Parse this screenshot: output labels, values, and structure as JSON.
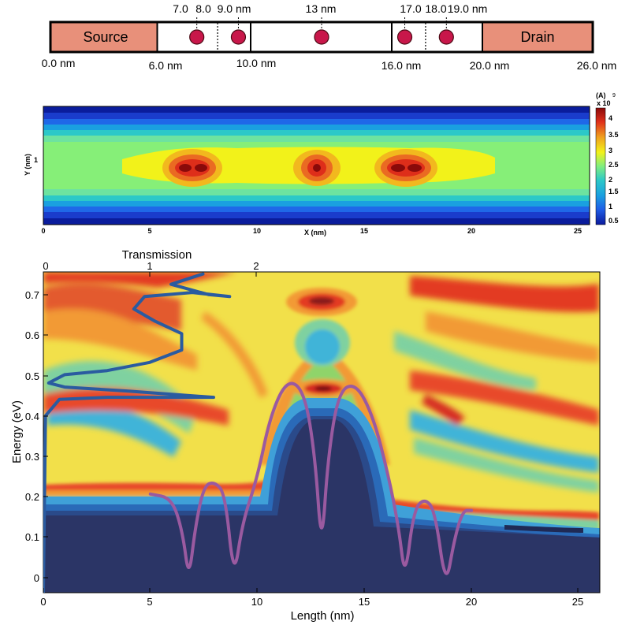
{
  "device": {
    "source_label": "Source",
    "drain_label": "Drain",
    "dopant_positions": [
      "7.0",
      "8.0",
      "9.0 nm",
      "13 nm",
      "17.0",
      "18.0",
      "19.0 nm"
    ],
    "bottom_positions": [
      "0.0 nm",
      "6.0 nm",
      "10.0 nm",
      "16.0 nm",
      "20.0 nm",
      "26.0 nm"
    ],
    "dopant_x_nm": [
      7,
      9,
      13,
      17,
      19
    ],
    "divider_x_nm": [
      8,
      18
    ]
  },
  "chart_data": [
    {
      "type": "heatmap",
      "title": "",
      "xlabel": "X (nm)",
      "ylabel": "Y (nm)",
      "xlim": [
        0,
        25.5
      ],
      "x_ticks": [
        "0",
        "5",
        "10",
        "15",
        "20",
        "25"
      ],
      "y_ticks": [
        "1"
      ],
      "colorbar": {
        "unit": "(A)",
        "multiplier": "x 10",
        "exponent": "9",
        "ticks": [
          "4",
          "3.5",
          "3",
          "2.5",
          "2",
          "1.5",
          "1",
          "0.5"
        ],
        "range": [
          0.3,
          4.3
        ]
      },
      "peaks": [
        {
          "x": 7,
          "value": 4.3
        },
        {
          "x": 13,
          "value": 4.2
        },
        {
          "x": 17,
          "value": 4.3
        }
      ]
    },
    {
      "type": "heatmap",
      "title": "",
      "xlabel": "Length (nm)",
      "ylabel": "Energy (eV)",
      "top_axis_label": "Transmission",
      "xlim": [
        0,
        26
      ],
      "ylim": [
        -0.03,
        0.75
      ],
      "x_ticks": [
        "0",
        "5",
        "10",
        "15",
        "20",
        "25"
      ],
      "y_ticks": [
        "0",
        "0.1",
        "0.2",
        "0.3",
        "0.4",
        "0.5",
        "0.6",
        "0.7"
      ],
      "top_ticks": [
        "0",
        "1",
        "2"
      ],
      "series": [
        {
          "color": "#2a5ba0",
          "points": [
            [
              0,
              -0.03
            ],
            [
              0.02,
              0.4
            ],
            [
              0.15,
              0.44
            ],
            [
              0.6,
              0.445
            ],
            [
              1.6,
              0.445
            ],
            [
              0.8,
              0.46
            ],
            [
              0.2,
              0.47
            ],
            [
              0.05,
              0.48
            ],
            [
              0.2,
              0.5
            ],
            [
              0.6,
              0.51
            ],
            [
              1.0,
              0.53
            ],
            [
              1.3,
              0.56
            ],
            [
              1.3,
              0.6
            ],
            [
              1.05,
              0.63
            ],
            [
              0.85,
              0.66
            ],
            [
              0.95,
              0.69
            ],
            [
              1.4,
              0.7
            ],
            [
              1.75,
              0.69
            ],
            [
              1.55,
              0.695
            ],
            [
              1.2,
              0.72
            ],
            [
              1.5,
              0.745
            ]
          ]
        },
        {
          "color": "#9a5aa0",
          "points": [
            [
              5.0,
              0.21
            ],
            [
              6.0,
              0.2
            ],
            [
              6.5,
              0.12
            ],
            [
              6.8,
              0.0
            ],
            [
              7.1,
              0.13
            ],
            [
              7.5,
              0.23
            ],
            [
              8.0,
              0.24
            ],
            [
              8.5,
              0.21
            ],
            [
              8.9,
              0.0
            ],
            [
              9.3,
              0.14
            ],
            [
              10.0,
              0.25
            ],
            [
              10.6,
              0.4
            ],
            [
              11.4,
              0.49
            ],
            [
              12.2,
              0.46
            ],
            [
              12.7,
              0.3
            ],
            [
              13.0,
              0.07
            ],
            [
              13.3,
              0.3
            ],
            [
              13.8,
              0.46
            ],
            [
              14.6,
              0.48
            ],
            [
              15.4,
              0.4
            ],
            [
              16.1,
              0.26
            ],
            [
              16.6,
              0.13
            ],
            [
              16.9,
              0.0
            ],
            [
              17.3,
              0.17
            ],
            [
              17.8,
              0.2
            ],
            [
              18.3,
              0.17
            ],
            [
              18.8,
              -0.02
            ],
            [
              19.2,
              0.1
            ],
            [
              19.6,
              0.17
            ],
            [
              20.0,
              0.17
            ]
          ]
        }
      ]
    }
  ]
}
